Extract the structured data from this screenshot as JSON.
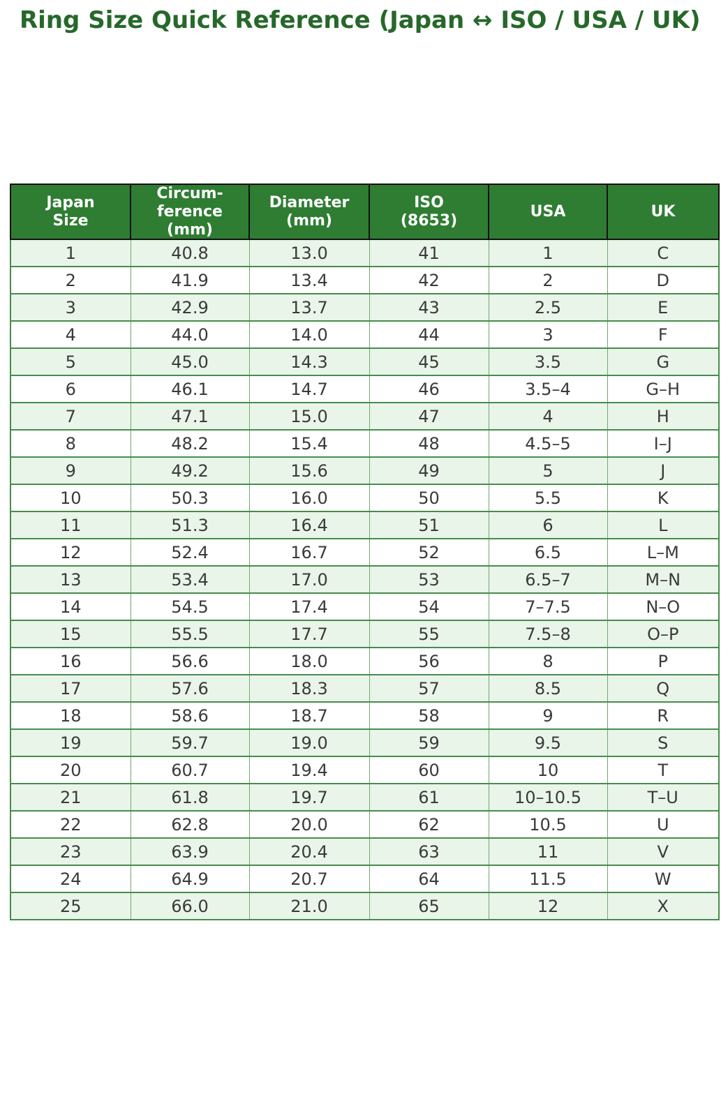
{
  "title": "Ring Size Quick Reference (Japan ↔ ISO / USA / UK)",
  "colors": {
    "title_color": "#26682a",
    "header_bg": "#2e7d32",
    "header_text": "#ffffff",
    "header_border": "#111111",
    "grid": "#478c4c",
    "grid_light": "#6fa873",
    "row_alt": "#e9f5e9",
    "row_bg": "#ffffff",
    "cell_text": "#3a3a3a"
  },
  "chart_data": {
    "type": "table",
    "title": "Ring Size Quick Reference (Japan ↔ ISO / USA / UK)",
    "columns": [
      "Japan\nSize",
      "Circum-\nference\n(mm)",
      "Diameter\n(mm)",
      "ISO\n(8653)",
      "USA",
      "UK"
    ],
    "rows": [
      [
        "1",
        "40.8",
        "13.0",
        "41",
        "1",
        "C"
      ],
      [
        "2",
        "41.9",
        "13.4",
        "42",
        "2",
        "D"
      ],
      [
        "3",
        "42.9",
        "13.7",
        "43",
        "2.5",
        "E"
      ],
      [
        "4",
        "44.0",
        "14.0",
        "44",
        "3",
        "F"
      ],
      [
        "5",
        "45.0",
        "14.3",
        "45",
        "3.5",
        "G"
      ],
      [
        "6",
        "46.1",
        "14.7",
        "46",
        "3.5–4",
        "G–H"
      ],
      [
        "7",
        "47.1",
        "15.0",
        "47",
        "4",
        "H"
      ],
      [
        "8",
        "48.2",
        "15.4",
        "48",
        "4.5–5",
        "I–J"
      ],
      [
        "9",
        "49.2",
        "15.6",
        "49",
        "5",
        "J"
      ],
      [
        "10",
        "50.3",
        "16.0",
        "50",
        "5.5",
        "K"
      ],
      [
        "11",
        "51.3",
        "16.4",
        "51",
        "6",
        "L"
      ],
      [
        "12",
        "52.4",
        "16.7",
        "52",
        "6.5",
        "L–M"
      ],
      [
        "13",
        "53.4",
        "17.0",
        "53",
        "6.5–7",
        "M–N"
      ],
      [
        "14",
        "54.5",
        "17.4",
        "54",
        "7–7.5",
        "N–O"
      ],
      [
        "15",
        "55.5",
        "17.7",
        "55",
        "7.5–8",
        "O–P"
      ],
      [
        "16",
        "56.6",
        "18.0",
        "56",
        "8",
        "P"
      ],
      [
        "17",
        "57.6",
        "18.3",
        "57",
        "8.5",
        "Q"
      ],
      [
        "18",
        "58.6",
        "18.7",
        "58",
        "9",
        "R"
      ],
      [
        "19",
        "59.7",
        "19.0",
        "59",
        "9.5",
        "S"
      ],
      [
        "20",
        "60.7",
        "19.4",
        "60",
        "10",
        "T"
      ],
      [
        "21",
        "61.8",
        "19.7",
        "61",
        "10–10.5",
        "T–U"
      ],
      [
        "22",
        "62.8",
        "20.0",
        "62",
        "10.5",
        "U"
      ],
      [
        "23",
        "63.9",
        "20.4",
        "63",
        "11",
        "V"
      ],
      [
        "24",
        "64.9",
        "20.7",
        "64",
        "11.5",
        "W"
      ],
      [
        "25",
        "66.0",
        "21.0",
        "65",
        "12",
        "X"
      ]
    ]
  }
}
